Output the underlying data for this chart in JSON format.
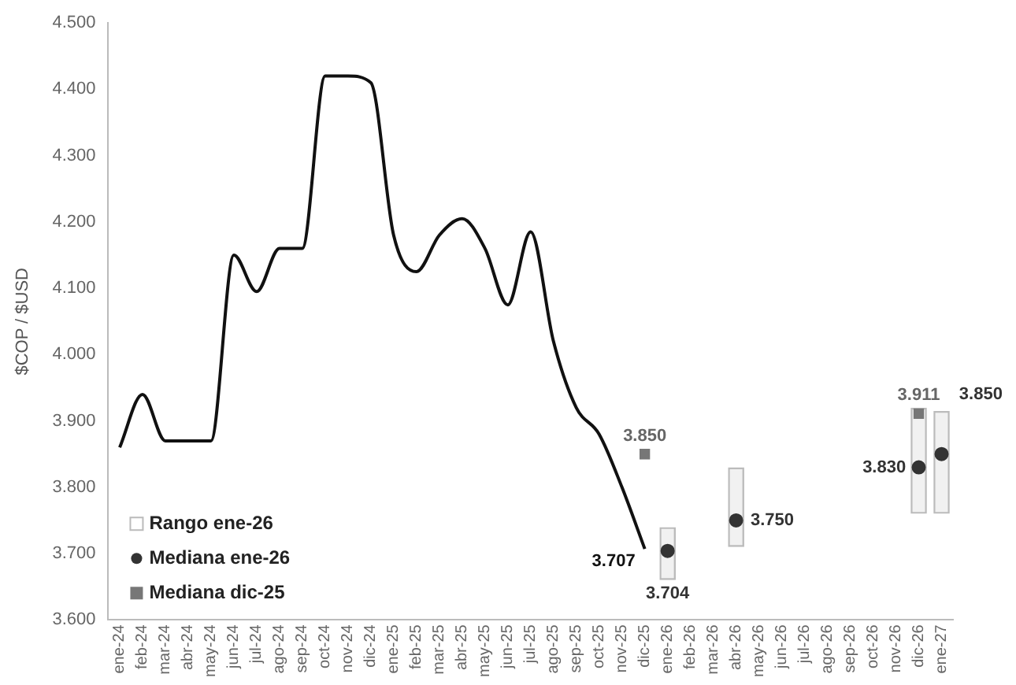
{
  "chart_data": {
    "type": "line",
    "ylabel": "$COP / $USD",
    "categories": [
      "ene-24",
      "feb-24",
      "mar-24",
      "abr-24",
      "may-24",
      "jun-24",
      "jul-24",
      "ago-24",
      "sep-24",
      "oct-24",
      "nov-24",
      "dic-24",
      "ene-25",
      "feb-25",
      "mar-25",
      "abr-25",
      "may-25",
      "jun-25",
      "jul-25",
      "ago-25",
      "sep-25",
      "oct-25",
      "nov-25",
      "dic-25",
      "ene-26",
      "feb-26",
      "mar-26",
      "abr-26",
      "may-26",
      "jun-26",
      "jul-26",
      "ago-26",
      "sep-26",
      "oct-26",
      "nov-26",
      "dic-26",
      "ene-27"
    ],
    "series": [
      {
        "color": "#111111",
        "marker": "none",
        "values": [
          3860,
          3940,
          3870,
          3870,
          3870,
          4150,
          4095,
          4160,
          4160,
          4420,
          4420,
          4410,
          4180,
          4125,
          4180,
          4205,
          4160,
          4075,
          4185,
          4020,
          3920,
          3880,
          3800,
          3707,
          null,
          null,
          null,
          null,
          null,
          null,
          null,
          null,
          null,
          null,
          null,
          null,
          null
        ],
        "value_labels": [
          null,
          null,
          null,
          null,
          null,
          null,
          null,
          null,
          null,
          null,
          null,
          null,
          null,
          null,
          null,
          null,
          null,
          null,
          null,
          null,
          null,
          null,
          null,
          "3.707",
          null,
          null,
          null,
          null,
          null,
          null,
          null,
          null,
          null,
          null,
          null,
          null,
          null
        ]
      },
      {
        "type": "bar",
        "name": "Rango ene-26",
        "color": "#bbbbbb",
        "base": [
          null,
          null,
          null,
          null,
          null,
          null,
          null,
          null,
          null,
          null,
          null,
          null,
          null,
          null,
          null,
          null,
          null,
          null,
          null,
          null,
          null,
          null,
          null,
          null,
          3660,
          null,
          null,
          3710,
          null,
          null,
          null,
          null,
          null,
          null,
          null,
          3760,
          3760
        ],
        "values": [
          null,
          null,
          null,
          null,
          null,
          null,
          null,
          null,
          null,
          null,
          null,
          null,
          null,
          null,
          null,
          null,
          null,
          null,
          null,
          null,
          null,
          null,
          null,
          null,
          80,
          null,
          null,
          120,
          null,
          null,
          null,
          null,
          null,
          null,
          null,
          160,
          155
        ]
      },
      {
        "type": "scatter",
        "name": "Mediana ene-26",
        "color": "#333333",
        "marker": "circle",
        "values": [
          null,
          null,
          null,
          null,
          null,
          null,
          null,
          null,
          null,
          null,
          null,
          null,
          null,
          null,
          null,
          null,
          null,
          null,
          null,
          null,
          null,
          null,
          null,
          null,
          3704,
          null,
          null,
          3750,
          null,
          null,
          null,
          null,
          null,
          null,
          null,
          3830,
          3850
        ],
        "value_labels": [
          null,
          null,
          null,
          null,
          null,
          null,
          null,
          null,
          null,
          null,
          null,
          null,
          null,
          null,
          null,
          null,
          null,
          null,
          null,
          null,
          null,
          null,
          null,
          null,
          "3.704",
          null,
          null,
          "3.750",
          null,
          null,
          null,
          null,
          null,
          null,
          null,
          "3.830",
          "3.850"
        ]
      },
      {
        "type": "scatter",
        "name": "Mediana dic-25",
        "color": "#777777",
        "marker": "square",
        "values": [
          null,
          null,
          null,
          null,
          null,
          null,
          null,
          null,
          null,
          null,
          null,
          null,
          null,
          null,
          null,
          null,
          null,
          null,
          null,
          null,
          null,
          null,
          null,
          3850,
          null,
          null,
          null,
          null,
          null,
          null,
          null,
          null,
          null,
          null,
          null,
          3911,
          null
        ],
        "value_labels": [
          null,
          null,
          null,
          null,
          null,
          null,
          null,
          null,
          null,
          null,
          null,
          null,
          null,
          null,
          null,
          null,
          null,
          null,
          null,
          null,
          null,
          null,
          null,
          "3.850",
          null,
          null,
          null,
          null,
          null,
          null,
          null,
          null,
          null,
          null,
          null,
          "3.911",
          null
        ]
      }
    ],
    "ylim": [
      3600,
      4500
    ],
    "yticks": [
      {
        "value": 3600,
        "label": "3.600"
      },
      {
        "value": 3700,
        "label": "3.700"
      },
      {
        "value": 3800,
        "label": "3.800"
      },
      {
        "value": 3900,
        "label": "3.900"
      },
      {
        "value": 4000,
        "label": "4.000"
      },
      {
        "value": 4100,
        "label": "4.100"
      },
      {
        "value": 4200,
        "label": "4.200"
      },
      {
        "value": 4300,
        "label": "4.300"
      },
      {
        "value": 4400,
        "label": "4.400"
      },
      {
        "value": 4500,
        "label": "4.500"
      }
    ],
    "grid": false,
    "legend": "bottom left"
  }
}
